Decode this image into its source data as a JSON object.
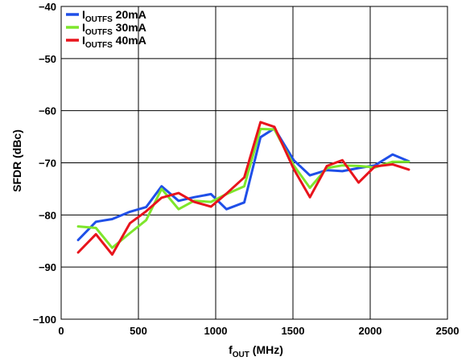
{
  "chart_data": {
    "type": "line",
    "title": "",
    "xlabel": "f",
    "xlabel_sub": "OUT",
    "xlabel_unit": " (MHz)",
    "ylabel": "SFDR (dBc)",
    "xlim": [
      0,
      2500
    ],
    "ylim": [
      -100,
      -40
    ],
    "xticks": [
      0,
      500,
      1000,
      1500,
      2000,
      2500
    ],
    "yticks": [
      -40,
      -50,
      -60,
      -70,
      -80,
      -90,
      -100
    ],
    "xtick_labels": [
      "0",
      "500",
      "1000",
      "1500",
      "2000",
      "2500"
    ],
    "ytick_labels": [
      "−40",
      "−50",
      "−60",
      "−70",
      "−80",
      "−90",
      "−100"
    ],
    "grid": true,
    "legend_position": "top-left",
    "series": [
      {
        "name_main": "I",
        "name_sub": "OUTFS",
        "name_rest": " 20mA",
        "color": "#1f4fe8",
        "x": [
          110,
          225,
          330,
          445,
          550,
          650,
          760,
          860,
          970,
          1070,
          1185,
          1290,
          1380,
          1505,
          1610,
          1720,
          1820,
          1925,
          2030,
          2145,
          2250
        ],
        "y": [
          -84.8,
          -81.3,
          -80.8,
          -79.4,
          -78.5,
          -74.5,
          -77.3,
          -76.6,
          -76.0,
          -78.9,
          -77.6,
          -65.1,
          -63.4,
          -69.5,
          -72.4,
          -71.4,
          -71.6,
          -71.0,
          -70.5,
          -68.4,
          -69.7
        ]
      },
      {
        "name_main": "I",
        "name_sub": "OUTFS",
        "name_rest": " 30mA",
        "color": "#7ee62c",
        "x": [
          110,
          225,
          330,
          445,
          550,
          650,
          760,
          860,
          970,
          1070,
          1185,
          1290,
          1380,
          1505,
          1610,
          1720,
          1820,
          1925,
          2030,
          2145,
          2250
        ],
        "y": [
          -82.2,
          -82.5,
          -86.3,
          -83.5,
          -81.0,
          -75.0,
          -78.9,
          -77.3,
          -77.5,
          -76.0,
          -74.5,
          -63.5,
          -63.6,
          -70.5,
          -74.8,
          -71.0,
          -70.5,
          -70.6,
          -70.9,
          -69.8,
          -69.8
        ]
      },
      {
        "name_main": "I",
        "name_sub": "OUTFS",
        "name_rest": " 40mA",
        "color": "#e8141c",
        "x": [
          110,
          225,
          330,
          445,
          550,
          650,
          760,
          860,
          970,
          1070,
          1185,
          1290,
          1380,
          1505,
          1610,
          1720,
          1820,
          1925,
          2030,
          2145,
          2250
        ],
        "y": [
          -87.2,
          -83.7,
          -87.6,
          -81.6,
          -79.3,
          -76.7,
          -75.8,
          -77.5,
          -78.4,
          -75.9,
          -72.8,
          -62.2,
          -63.1,
          -71.2,
          -76.6,
          -70.6,
          -69.5,
          -73.8,
          -70.7,
          -70.3,
          -71.3
        ]
      }
    ]
  }
}
